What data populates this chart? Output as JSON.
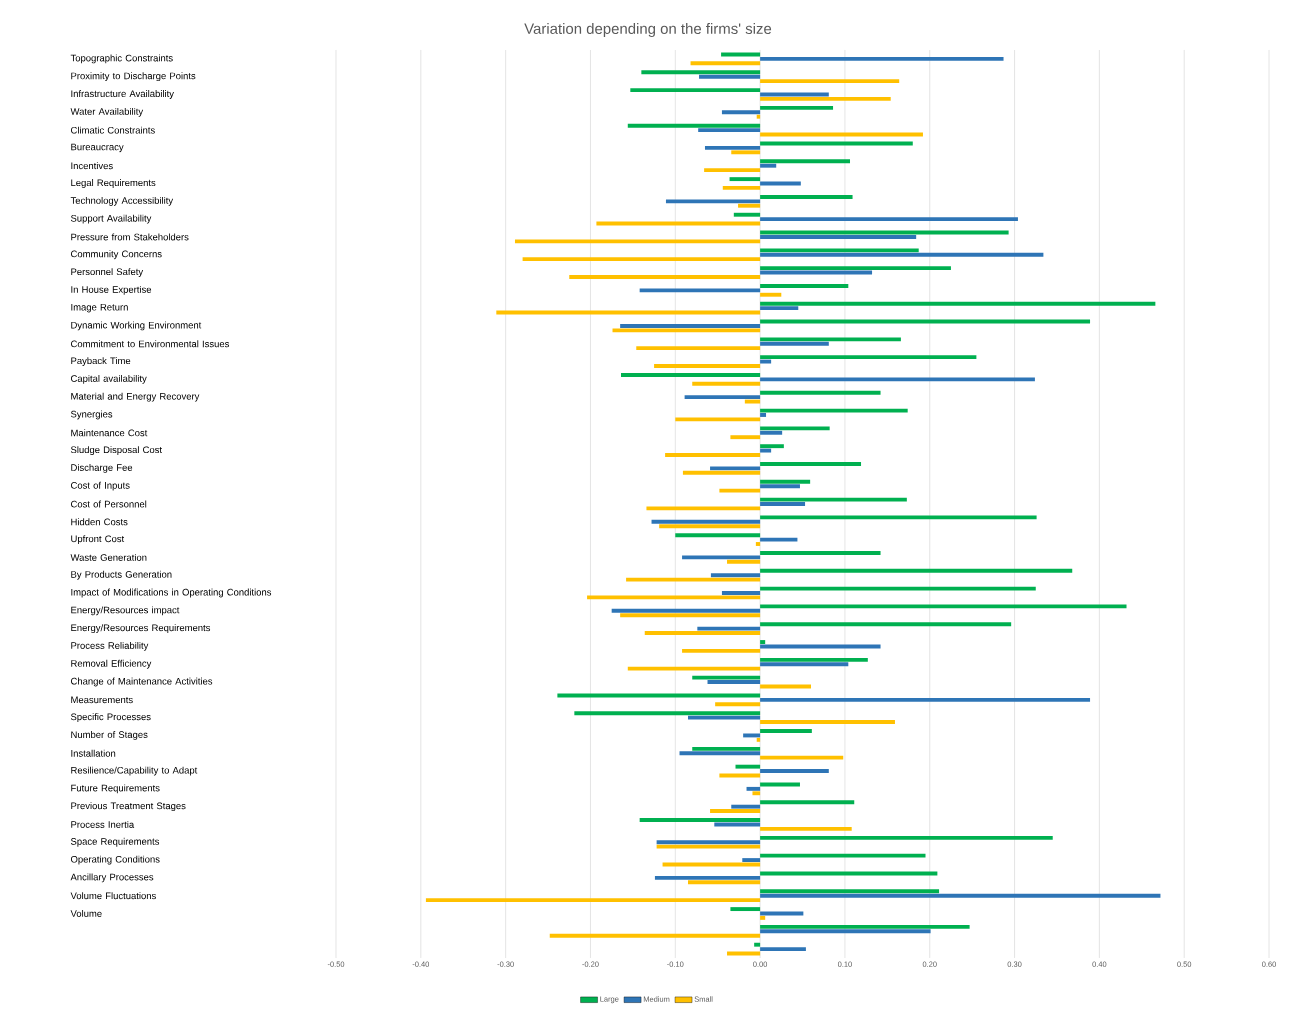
{
  "chart_data": {
    "type": "bar",
    "orientation": "horizontal",
    "title": "Variation depending on the firms' size",
    "categories": [
      "Topographic Constraints",
      "Proximity to Discharge Points",
      "Infrastructure Availability",
      "Water Availability",
      "Climatic Constraints",
      "Bureaucracy",
      "Incentives",
      "Legal Requirements",
      "Technology Accessibility",
      "Support Availability",
      "Pressure from Stakeholders",
      "Community Concerns",
      "Personnel Safety",
      "In House Expertise",
      "Image Return",
      "Dynamic Working Environment",
      "Commitment to Environmental Issues",
      "Payback Time",
      "Capital availability",
      "Material and Energy Recovery",
      "Synergies",
      "Maintenance Cost",
      "Sludge Disposal Cost",
      "Discharge Fee",
      "Cost of Inputs",
      "Cost of Personnel",
      "Hidden Costs",
      "Upfront Cost",
      "Waste Generation",
      "By Products Generation",
      "Impact of Modifications in Operating Conditions",
      "Energy/Resources impact",
      "Energy/Resources Requirements",
      "Process Reliability",
      "Removal Efficiency",
      "Change of Maintenance Activities",
      "Measurements",
      "Specific Processes",
      "Number of Stages",
      "Installation",
      "Resilience/Capability to Adapt",
      "Future Requirements",
      "Previous Treatment Stages",
      "Process Inertia",
      "Space Requirements",
      "Operating Conditions",
      "Ancillary Processes",
      "Volume Fluctuations",
      "Volume",
      null,
      null
    ],
    "series": [
      {
        "name": "Large",
        "color": "#00b050",
        "values": [
          -0.046,
          -0.14,
          -0.153,
          0.086,
          -0.156,
          0.18,
          0.106,
          -0.036,
          0.109,
          -0.031,
          0.293,
          0.187,
          0.225,
          0.104,
          0.466,
          0.389,
          0.166,
          0.255,
          -0.164,
          0.142,
          0.174,
          0.082,
          0.028,
          0.119,
          0.059,
          0.173,
          0.326,
          -0.1,
          0.142,
          0.368,
          0.325,
          0.432,
          0.296,
          0.006,
          0.127,
          -0.08,
          -0.239,
          -0.219,
          0.061,
          -0.08,
          -0.029,
          0.047,
          0.111,
          -0.142,
          0.345,
          0.195,
          0.209,
          0.211,
          -0.035,
          0.247,
          -0.007
        ]
      },
      {
        "name": "Medium",
        "color": "#2e75b6",
        "values": [
          0.287,
          -0.072,
          0.081,
          -0.045,
          -0.073,
          -0.065,
          0.019,
          0.048,
          -0.111,
          0.304,
          0.184,
          0.334,
          0.132,
          -0.142,
          0.045,
          -0.165,
          0.081,
          0.013,
          0.324,
          -0.089,
          0.007,
          0.026,
          0.013,
          -0.059,
          0.047,
          0.053,
          -0.128,
          0.044,
          -0.092,
          -0.058,
          -0.045,
          -0.175,
          -0.074,
          0.142,
          0.104,
          -0.062,
          0.389,
          -0.085,
          -0.02,
          -0.095,
          0.081,
          -0.016,
          -0.034,
          -0.054,
          -0.122,
          -0.021,
          -0.124,
          0.472,
          0.051,
          0.201,
          0.054
        ]
      },
      {
        "name": "Small",
        "color": "#ffc000",
        "values": [
          -0.082,
          0.164,
          0.154,
          -0.004,
          0.192,
          -0.034,
          -0.066,
          -0.044,
          -0.026,
          -0.193,
          -0.289,
          -0.28,
          -0.225,
          0.025,
          -0.311,
          -0.174,
          -0.146,
          -0.125,
          -0.08,
          -0.018,
          -0.1,
          -0.035,
          -0.112,
          -0.091,
          -0.048,
          -0.134,
          -0.119,
          -0.005,
          -0.039,
          -0.158,
          -0.204,
          -0.165,
          -0.136,
          -0.092,
          -0.156,
          0.06,
          -0.053,
          0.159,
          -0.004,
          0.098,
          -0.048,
          -0.009,
          -0.059,
          0.108,
          -0.122,
          -0.115,
          -0.085,
          -0.394,
          0.006,
          -0.248,
          -0.039
        ]
      }
    ],
    "xlim": [
      -0.5,
      0.6
    ],
    "xticks": [
      {
        "value": -0.5,
        "label": "-0.50"
      },
      {
        "value": -0.4,
        "label": "-0.40"
      },
      {
        "value": -0.3,
        "label": "-0.30"
      },
      {
        "value": -0.2,
        "label": "-0.20"
      },
      {
        "value": -0.1,
        "label": "-0.10"
      },
      {
        "value": 0,
        "label": "0.00"
      },
      {
        "value": 0.1,
        "label": "0.10"
      },
      {
        "value": 0.2,
        "label": "0.20"
      },
      {
        "value": 0.3,
        "label": "0.30"
      },
      {
        "value": 0.4,
        "label": "0.40"
      },
      {
        "value": 0.5,
        "label": "0.50"
      },
      {
        "value": 0.6,
        "label": "0.60"
      }
    ],
    "grid": "x",
    "legend": "bottom"
  }
}
